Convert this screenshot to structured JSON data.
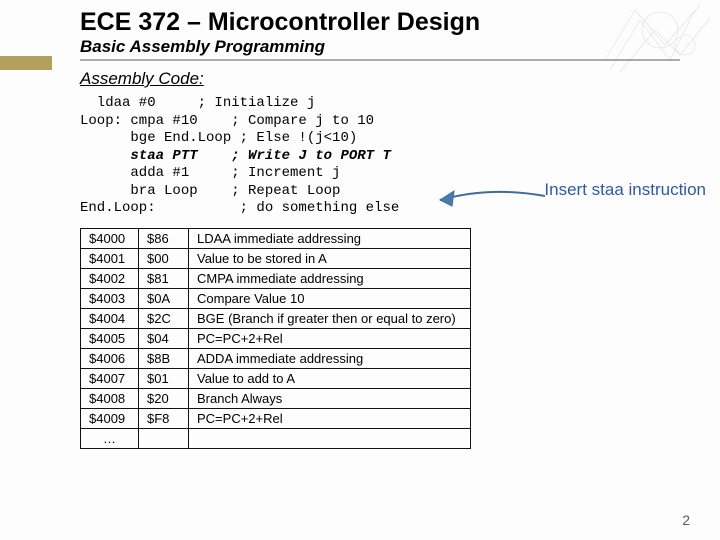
{
  "title": "ECE 372 – Microcontroller Design",
  "subtitle": "Basic Assembly Programming",
  "section_heading": "Assembly Code:",
  "code_lines": [
    "  ldaa #0     ; Initialize j",
    "Loop: cmpa #10    ; Compare j to 10",
    "      bge End.Loop ; Else !(j<10)",
    "      staa PTT    ; Write J to PORT T",
    "      adda #1     ; Increment j",
    "      bra Loop    ; Repeat Loop",
    "End.Loop:          ; do something else"
  ],
  "staa_line_index": 3,
  "callout_text": "Insert staa instruction",
  "callout_color": "#2e5aa0",
  "arrow_stroke": "#3d6d9c",
  "arrow_fill": "#4a7aa8",
  "table": {
    "rows": [
      {
        "addr": "$4000",
        "op": "$86",
        "desc": "LDAA immediate addressing"
      },
      {
        "addr": "$4001",
        "op": "$00",
        "desc": "Value to be stored in A"
      },
      {
        "addr": "$4002",
        "op": "$81",
        "desc": "CMPA immediate addressing"
      },
      {
        "addr": "$4003",
        "op": "$0A",
        "desc": "Compare Value 10"
      },
      {
        "addr": "$4004",
        "op": "$2C",
        "desc": "BGE (Branch if greater then or equal to zero)"
      },
      {
        "addr": "$4005",
        "op": "$04",
        "desc": "PC=PC+2+Rel"
      },
      {
        "addr": "$4006",
        "op": "$8B",
        "desc": "ADDA immediate addressing"
      },
      {
        "addr": "$4007",
        "op": "$01",
        "desc": "Value to add to A"
      },
      {
        "addr": "$4008",
        "op": "$20",
        "desc": "Branch Always"
      },
      {
        "addr": "$4009",
        "op": "$F8",
        "desc": "PC=PC+2+Rel"
      }
    ],
    "ellipsis": "…"
  },
  "page_number": "2"
}
